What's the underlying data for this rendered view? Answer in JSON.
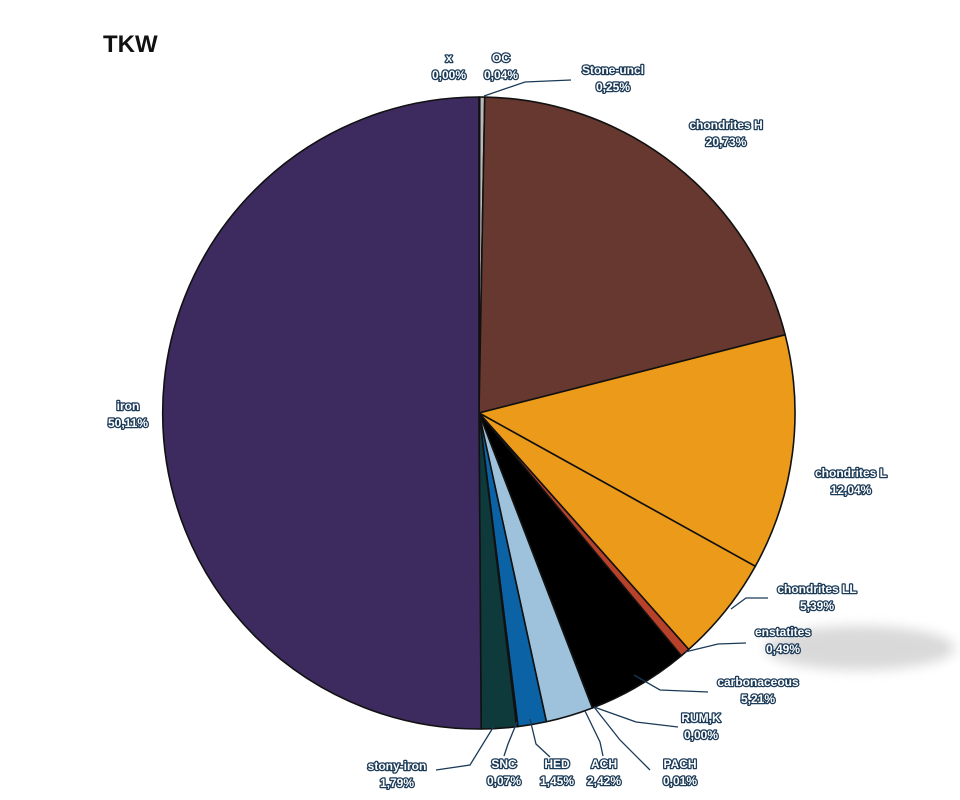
{
  "chart_data": {
    "type": "pie",
    "title": "TKW",
    "start_angle_deg": 0,
    "direction": "clockwise",
    "slices": [
      {
        "label": "x",
        "value_label": "0,00%",
        "value": 0.0,
        "color": "#888888"
      },
      {
        "label": "OC",
        "value_label": "0,04%",
        "value": 0.04,
        "color": "#7a7a7a"
      },
      {
        "label": "Stone-uncl",
        "value_label": "0,25%",
        "value": 0.25,
        "color": "#b9b9b9"
      },
      {
        "label": "chondrites H",
        "value_label": "20,73%",
        "value": 20.73,
        "color": "#66382f"
      },
      {
        "label": "chondrites L",
        "value_label": "12,04%",
        "value": 12.04,
        "color": "#ec9a1a"
      },
      {
        "label": "chondrites LL",
        "value_label": "5,39%",
        "value": 5.39,
        "color": "#ec9a1a"
      },
      {
        "label": "enstatites",
        "value_label": "0,49%",
        "value": 0.49,
        "color": "#b8412a"
      },
      {
        "label": "carbonaceous",
        "value_label": "5,21%",
        "value": 5.21,
        "color": "#000000"
      },
      {
        "label": "RUM,K",
        "value_label": "0,00%",
        "value": 0.0,
        "color": "#ffffff"
      },
      {
        "label": "PACH",
        "value_label": "0,01%",
        "value": 0.01,
        "color": "#cfe0ee"
      },
      {
        "label": "ACH",
        "value_label": "2,42%",
        "value": 2.42,
        "color": "#9fc2dc"
      },
      {
        "label": "HED",
        "value_label": "1,45%",
        "value": 1.45,
        "color": "#0b63a6"
      },
      {
        "label": "SNC",
        "value_label": "0,07%",
        "value": 0.07,
        "color": "#2b2b40"
      },
      {
        "label": "stony-iron",
        "value_label": "1,79%",
        "value": 1.79,
        "color": "#0f3a3c"
      },
      {
        "label": "iron",
        "value_label": "50,11%",
        "value": 50.11,
        "color": "#3d2b5f"
      }
    ]
  }
}
